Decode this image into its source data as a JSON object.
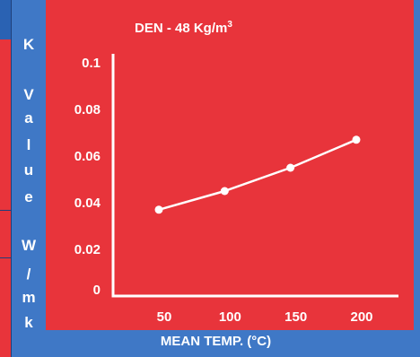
{
  "chart_data": {
    "type": "line",
    "title_main": "DEN - 48 Kg/m",
    "title_sup": "3",
    "xlabel": "MEAN TEMP. (°C)",
    "ylabel_chars": [
      "K",
      "V",
      "a",
      "l",
      "u",
      "e",
      "W",
      "/",
      "m",
      "k"
    ],
    "xticks": [
      "50",
      "100",
      "150",
      "200"
    ],
    "yticks": [
      "0",
      "0.02",
      "0.04",
      "0.06",
      "0.08",
      "0.1"
    ],
    "ylim": [
      0,
      0.1
    ],
    "series": [
      {
        "x": [
          50,
          100,
          150,
          200
        ],
        "values": [
          0.037,
          0.045,
          0.055,
          0.067
        ]
      }
    ],
    "colors": {
      "background": "#e8343b",
      "axis": "#ffffff",
      "bars": "#3f78c6"
    }
  }
}
